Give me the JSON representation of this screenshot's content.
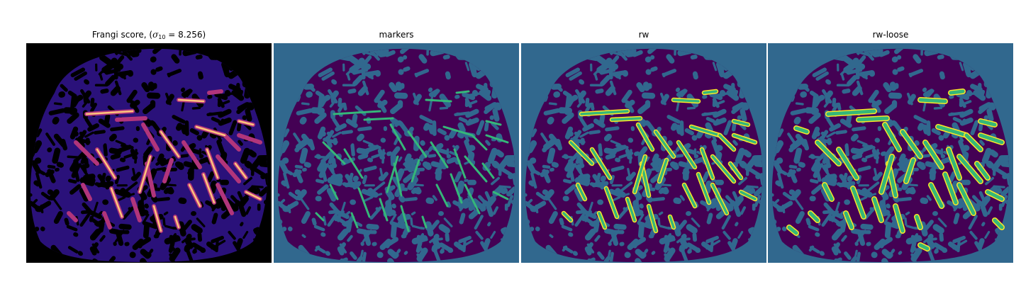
{
  "panels": [
    {
      "id": "frangi",
      "title_prefix": "Frangi score, (",
      "title_sigma": "σ",
      "title_sub": "10",
      "title_suffix": " = 8.256)"
    },
    {
      "id": "markers",
      "title": "markers"
    },
    {
      "id": "rw",
      "title": "rw"
    },
    {
      "id": "rw-loose",
      "title": "rw-loose"
    }
  ],
  "colors": {
    "frangi_background": "#000000",
    "frangi_tissue": "#2a117a",
    "frangi_ridge_mid": "#b1357b",
    "frangi_ridge_high": "#fdc47c",
    "seg_background": "#31688e",
    "seg_tissue_dark": "#440154",
    "seg_vessel": "#35b779",
    "seg_vessel_bright": "#fde725"
  }
}
